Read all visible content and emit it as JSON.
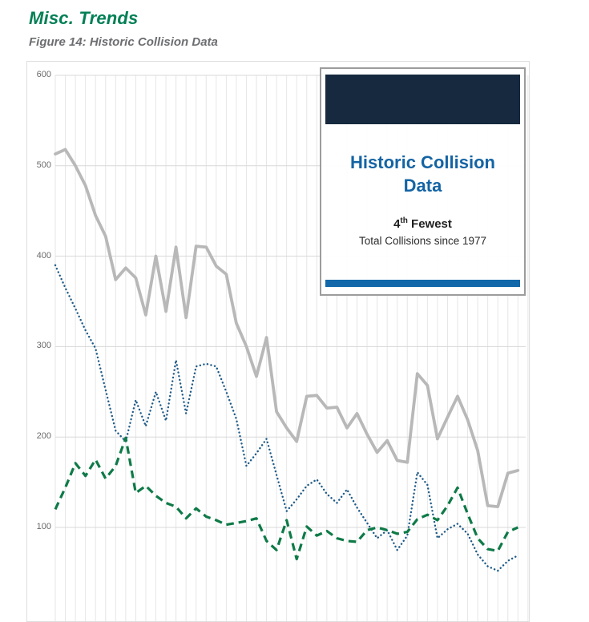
{
  "page": {
    "title": "Misc. Trends",
    "caption": "Figure 14: Historic Collision Data"
  },
  "inset": {
    "title_line1": "Historic Collision",
    "title_line2": "Data",
    "rank_number": "4",
    "rank_suffix": "th",
    "rank_label": " Fewest",
    "subtitle": "Total Collisions since 1977",
    "header_color": "#16293e",
    "title_color": "#1464a4",
    "footer_bar_color": "#1268a8"
  },
  "chart_data": {
    "type": "line",
    "title": "Figure 14: Historic Collision Data",
    "x_start_year": 1977,
    "n_points": 47,
    "xlabel": "",
    "ylabel": "",
    "yticks": [
      600,
      500,
      400,
      300,
      200,
      100
    ],
    "ytick_labels": [
      "600",
      "500",
      "400",
      "300",
      "200",
      "100"
    ],
    "ylim_top": 600,
    "grid": "vertical line per year; horizontal line per 100 units; x axis labels cut off at bottom of screenshot",
    "legend": "none",
    "series": [
      {
        "name": "gray-solid-total-collisions",
        "color": "#b8b8b8",
        "line_style": "solid",
        "values": [
          513,
          518,
          500,
          478,
          445,
          422,
          374,
          387,
          376,
          335,
          400,
          339,
          410,
          332,
          411,
          410,
          389,
          380,
          326,
          300,
          267,
          310,
          228,
          210,
          195,
          245,
          246,
          232,
          233,
          210,
          226,
          203,
          183,
          196,
          174,
          172,
          270,
          257,
          198,
          222,
          245,
          219,
          185,
          124,
          123,
          160,
          163
        ]
      },
      {
        "name": "blue-dotted",
        "color": "#1f5b88",
        "line_style": "dotted",
        "values": [
          390,
          365,
          342,
          318,
          298,
          252,
          207,
          195,
          241,
          212,
          250,
          218,
          285,
          226,
          278,
          281,
          278,
          250,
          220,
          168,
          182,
          198,
          158,
          118,
          131,
          146,
          153,
          137,
          127,
          142,
          122,
          105,
          88,
          97,
          75,
          91,
          161,
          147,
          88,
          98,
          104,
          93,
          70,
          57,
          52,
          63,
          69
        ]
      },
      {
        "name": "green-dashed",
        "color": "#0e7a47",
        "line_style": "dashed",
        "values": [
          120,
          144,
          171,
          157,
          175,
          154,
          168,
          199,
          138,
          146,
          135,
          127,
          123,
          110,
          121,
          112,
          108,
          103,
          105,
          107,
          110,
          85,
          75,
          108,
          65,
          101,
          91,
          96,
          88,
          85,
          84,
          97,
          100,
          97,
          93,
          95,
          109,
          114,
          108,
          124,
          144,
          115,
          88,
          76,
          74,
          95,
          100
        ]
      }
    ]
  }
}
